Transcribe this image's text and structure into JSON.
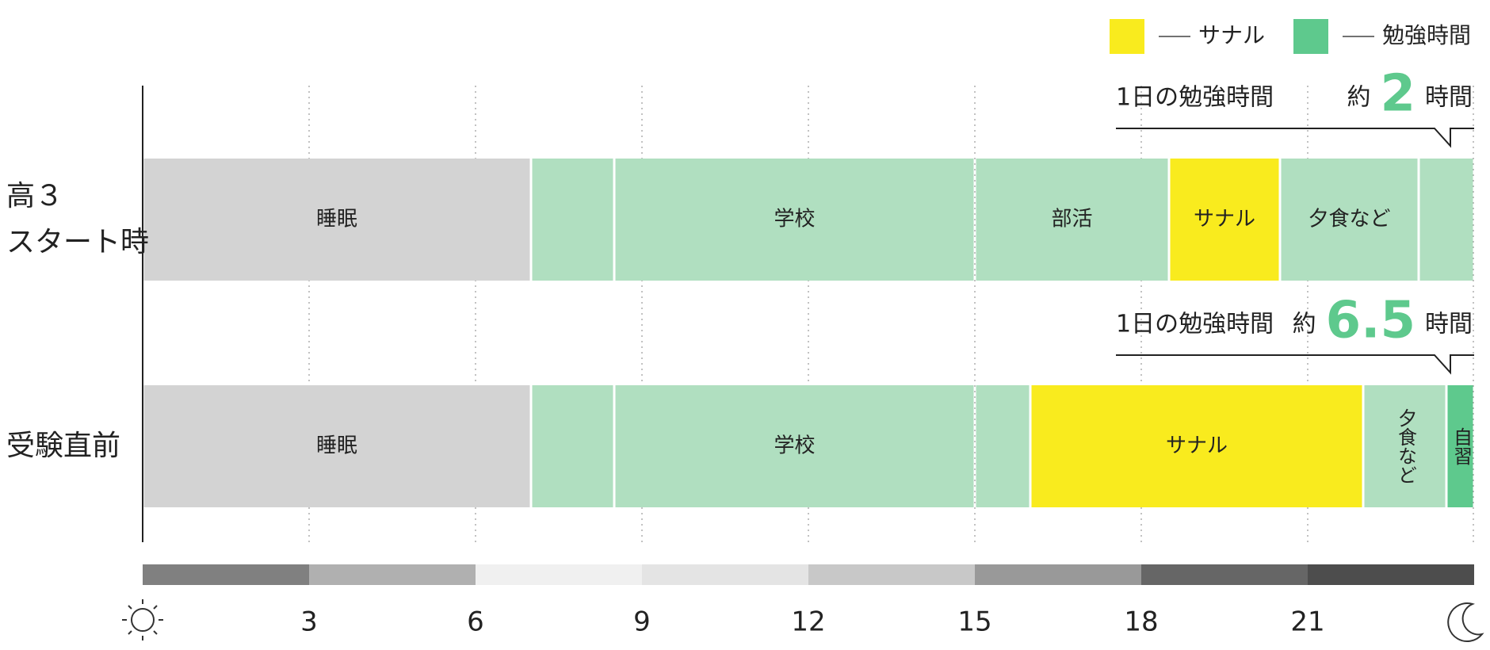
{
  "chart_data": {
    "type": "timeline",
    "xlim": [
      0,
      24
    ],
    "xticks": [
      3,
      6,
      9,
      12,
      15,
      18,
      21
    ],
    "legend": [
      {
        "name": "サナル",
        "color": "#f9eb1e"
      },
      {
        "name": "勉強時間",
        "color": "#5ec98d"
      }
    ],
    "band_colors": [
      "#808080",
      "#b0b0b0",
      "#f0f0f0",
      "#e4e4e4",
      "#c8c8c8",
      "#999999",
      "#666666",
      "#4d4d4d"
    ],
    "callout_label": "1日の勉強時間",
    "callout_prefix": "約",
    "callout_unit": "時間",
    "rows": [
      {
        "category": "高３\nスタート時",
        "study_hours": 2,
        "segments": [
          {
            "label": "睡眠",
            "value": 7,
            "color": "#d3d3d3"
          },
          {
            "label": null,
            "value": 1.5,
            "color": "#b0dfc0"
          },
          {
            "label": "学校",
            "value": 6.5,
            "color": "#b0dfc0"
          },
          {
            "label": "部活",
            "value": 3.5,
            "color": "#b0dfc0"
          },
          {
            "label": "サナル",
            "value": 2,
            "color": "#f9eb1e"
          },
          {
            "label": "夕食など",
            "value": 2.5,
            "color": "#b0dfc0"
          },
          {
            "label": null,
            "value": 1,
            "color": "#b0dfc0"
          }
        ]
      },
      {
        "category": "受験直前",
        "study_hours": 6.5,
        "segments": [
          {
            "label": "睡眠",
            "value": 7,
            "color": "#d3d3d3"
          },
          {
            "label": null,
            "value": 1.5,
            "color": "#b0dfc0"
          },
          {
            "label": "学校",
            "value": 6.5,
            "color": "#b0dfc0"
          },
          {
            "label": null,
            "value": 1,
            "color": "#b0dfc0"
          },
          {
            "label": "サナル",
            "value": 6,
            "color": "#f9eb1e"
          },
          {
            "label": "夕食など",
            "value": 1.5,
            "color": "#b0dfc0"
          },
          {
            "label": "自習",
            "value": 0.5,
            "color": "#5ec98d"
          }
        ]
      }
    ]
  }
}
